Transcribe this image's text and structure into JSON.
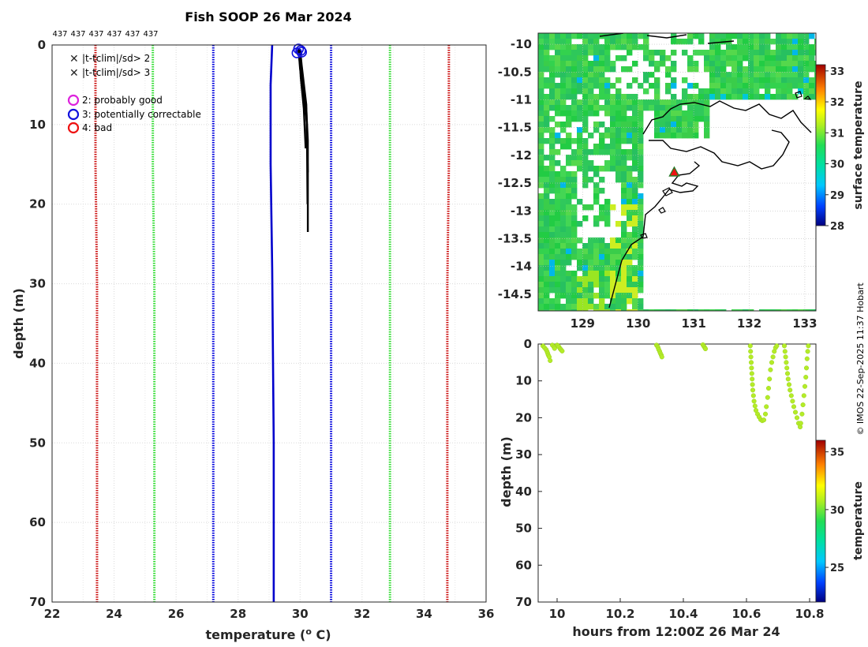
{
  "colors": {
    "qc_green": "#33dd33",
    "qc_blue": "#0000dd",
    "qc_red": "#cc1111",
    "ocean_green": "#2ecc55",
    "profile_color": "#000000",
    "mean_profile": "#0000cc",
    "dots": "#b4ec28"
  },
  "chart_data": [
    {
      "id": "profile",
      "type": "line",
      "title": "Fish SOOP 26 Mar 2024",
      "xlabel": "temperature (o C)",
      "xlabel_base": "temperature (",
      "xlabel_sup": "o",
      "xlabel_end": " C)",
      "ylabel": "depth (m)",
      "xlim": [
        22,
        36
      ],
      "ylim": [
        0,
        70
      ],
      "xticks": [
        "22",
        "24",
        "26",
        "28",
        "30",
        "32",
        "34",
        "36"
      ],
      "yticks": [
        "0",
        "10",
        "20",
        "30",
        "40",
        "50",
        "60",
        "70"
      ],
      "top_labels": [
        "437",
        "437",
        "437",
        "437",
        "437",
        "437"
      ],
      "legend_flags": [
        {
          "symbol": "x",
          "color": "#22cc22",
          "text": "|t-tclim|/sd> 2"
        },
        {
          "symbol": "x",
          "color": "#dd1111",
          "text": "|t-tclim|/sd> 3"
        }
      ],
      "legend_qc": [
        {
          "symbol": "o",
          "color": "#dd22dd",
          "text": "2: probably good"
        },
        {
          "symbol": "o",
          "color": "#1111dd",
          "text": "3: potentially correctable"
        },
        {
          "symbol": "o",
          "color": "#ee1111",
          "text": "4: bad"
        }
      ],
      "series": [
        {
          "name": "clim-3sd",
          "style": "dotted",
          "color": "#cc1111",
          "x": [
            23.4,
            23.4,
            23.45,
            23.45,
            23.45
          ],
          "y": [
            0,
            15,
            30,
            50,
            70
          ]
        },
        {
          "name": "clim-2sd",
          "style": "dotted",
          "color": "#33dd33",
          "x": [
            25.25,
            25.25,
            25.3,
            25.3,
            25.3
          ],
          "y": [
            0,
            15,
            30,
            50,
            70
          ]
        },
        {
          "name": "clim-1sd",
          "style": "dotted",
          "color": "#0000dd",
          "x": [
            27.2,
            27.2,
            27.2,
            27.2,
            27.2
          ],
          "y": [
            0,
            15,
            30,
            50,
            70
          ]
        },
        {
          "name": "clim-mean",
          "style": "solid",
          "color": "#0000cc",
          "x": [
            29.1,
            29.05,
            29.05,
            29.1,
            29.15,
            29.15
          ],
          "y": [
            0,
            5,
            15,
            28,
            50,
            70
          ]
        },
        {
          "name": "clim+1sd",
          "style": "dotted",
          "color": "#0000dd",
          "x": [
            31.0,
            31.0,
            31.0,
            31.0,
            31.0
          ],
          "y": [
            0,
            15,
            30,
            50,
            70
          ]
        },
        {
          "name": "clim+2sd",
          "style": "dotted",
          "color": "#33dd33",
          "x": [
            32.9,
            32.9,
            32.9,
            32.9,
            32.9
          ],
          "y": [
            0,
            15,
            30,
            50,
            70
          ]
        },
        {
          "name": "clim+3sd",
          "style": "dotted",
          "color": "#cc1111",
          "x": [
            34.8,
            34.8,
            34.75,
            34.75,
            34.75
          ],
          "y": [
            0,
            15,
            30,
            50,
            70
          ]
        },
        {
          "name": "profile-1",
          "style": "solid",
          "color": "#000000",
          "x": [
            29.95,
            30.0,
            30.1,
            30.2,
            30.25,
            30.25
          ],
          "y": [
            0.5,
            3,
            6,
            8,
            12,
            23.5
          ]
        },
        {
          "name": "profile-2",
          "style": "solid",
          "color": "#000000",
          "x": [
            29.97,
            30.05,
            30.15,
            30.22,
            30.24
          ],
          "y": [
            0.5,
            4,
            7,
            10,
            20
          ]
        },
        {
          "name": "profile-3",
          "style": "solid",
          "color": "#000000",
          "x": [
            30.0,
            30.05,
            30.2,
            30.25
          ],
          "y": [
            0.5,
            2.5,
            7.5,
            16
          ]
        },
        {
          "name": "profile-4",
          "style": "solid",
          "color": "#000000",
          "x": [
            29.98,
            30.02,
            30.12,
            30.18
          ],
          "y": [
            0.5,
            4,
            8,
            13
          ]
        },
        {
          "name": "profile-5",
          "style": "solid",
          "color": "#000000",
          "x": [
            29.94,
            30.0,
            30.06
          ],
          "y": [
            0.5,
            2.5,
            5
          ]
        }
      ],
      "qc_markers": [
        {
          "x": 29.95,
          "y": 0.5
        },
        {
          "x": 30.02,
          "y": 0.7
        },
        {
          "x": 29.9,
          "y": 1.0
        },
        {
          "x": 30.05,
          "y": 0.9
        }
      ]
    },
    {
      "id": "map",
      "type": "heatmap",
      "xlim": [
        128.2,
        133.2
      ],
      "ylim": [
        -14.8,
        -9.8
      ],
      "xticks": [
        "129",
        "130",
        "131",
        "132",
        "133"
      ],
      "yticks": [
        "-10",
        "-10.5",
        "-11",
        "-11.5",
        "-12",
        "-12.5",
        "-13",
        "-13.5",
        "-14",
        "-14.5"
      ],
      "colorbar_label": "surface temperature",
      "colorbar_range": [
        28,
        33.2
      ],
      "colorbar_ticks": [
        "28",
        "29",
        "30",
        "31",
        "32",
        "33"
      ],
      "marker": {
        "lon": 130.65,
        "lat": -12.3
      }
    },
    {
      "id": "timeseries",
      "type": "scatter",
      "xlabel": "hours from 12:00Z 26 Mar 24",
      "ylabel": "depth (m)",
      "xlim": [
        9.94,
        10.82
      ],
      "ylim": [
        0,
        70
      ],
      "xticks": [
        "10",
        "10.2",
        "10.4",
        "10.6",
        "10.8"
      ],
      "yticks": [
        "0",
        "10",
        "20",
        "30",
        "40",
        "50",
        "60",
        "70"
      ],
      "colorbar_label": "temperature",
      "colorbar_range": [
        22,
        36
      ],
      "colorbar_ticks": [
        "25",
        "30",
        "35"
      ],
      "series": [
        {
          "name": "cast-1",
          "x": [
            9.955,
            9.96,
            9.965,
            9.968,
            9.97,
            9.972,
            9.975,
            9.978
          ],
          "y": [
            0.5,
            1.0,
            1.5,
            2.0,
            2.5,
            3.0,
            3.5,
            4.5
          ]
        },
        {
          "name": "cast-2",
          "x": [
            9.985,
            9.99,
            9.992
          ],
          "y": [
            0.3,
            0.8,
            1.2
          ]
        },
        {
          "name": "cast-3",
          "x": [
            10.0,
            10.003,
            10.006,
            10.01,
            10.013,
            10.016
          ],
          "y": [
            0.3,
            0.5,
            0.8,
            1.3,
            1.6,
            1.9
          ]
        },
        {
          "name": "cast-4",
          "x": [
            10.315,
            10.318,
            10.32,
            10.322,
            10.325,
            10.327,
            10.33,
            10.332
          ],
          "y": [
            0.3,
            0.6,
            1.0,
            1.5,
            2.0,
            2.5,
            3.0,
            3.5
          ]
        },
        {
          "name": "cast-5",
          "x": [
            10.462,
            10.465,
            10.468,
            10.47
          ],
          "y": [
            0.2,
            0.6,
            1.0,
            1.3
          ]
        },
        {
          "name": "cast-6",
          "x": [
            10.612,
            10.613,
            10.614,
            10.615,
            10.616,
            10.617,
            10.618,
            10.619,
            10.62,
            10.622,
            10.624,
            10.627,
            10.63,
            10.635,
            10.64,
            10.645,
            10.65,
            10.655
          ],
          "y": [
            0.5,
            2,
            3.5,
            5,
            6.5,
            8,
            9.5,
            11,
            12.5,
            14,
            15.5,
            16.8,
            18,
            19,
            19.8,
            20.5,
            20.8,
            20.6
          ]
        },
        {
          "name": "cast-7",
          "x": [
            10.66,
            10.663,
            10.667,
            10.67,
            10.673,
            10.676,
            10.68,
            10.684,
            10.688,
            10.692,
            10.696
          ],
          "y": [
            19,
            17,
            14.5,
            12,
            9.5,
            7,
            5,
            3.5,
            2,
            1,
            0.5
          ]
        },
        {
          "name": "cast-8",
          "x": [
            10.72,
            10.722,
            10.724,
            10.726,
            10.728,
            10.73,
            10.732,
            10.735,
            10.738,
            10.742,
            10.746,
            10.75,
            10.755,
            10.76,
            10.765,
            10.77
          ],
          "y": [
            0.5,
            2,
            3.5,
            5,
            6.5,
            8,
            9.5,
            11,
            12.5,
            14,
            15.5,
            17,
            18.5,
            20,
            21.5,
            22.5
          ]
        },
        {
          "name": "cast-9",
          "x": [
            10.772,
            10.776,
            10.779,
            10.782,
            10.785,
            10.788,
            10.79,
            10.792,
            10.794,
            10.796
          ],
          "y": [
            21.5,
            19,
            16.5,
            14,
            11.5,
            9,
            6.5,
            4,
            2,
            0.5
          ]
        }
      ]
    }
  ],
  "credit": "© IMOS 22-Sep-2025 11:37 Hobart"
}
